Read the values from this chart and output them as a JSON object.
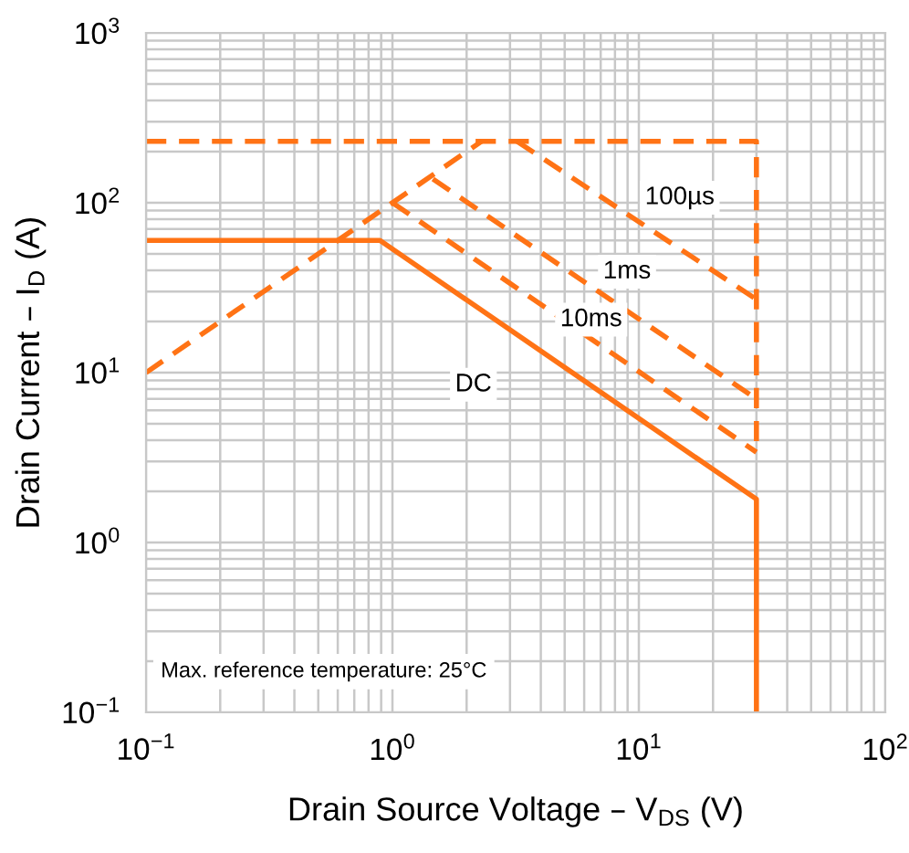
{
  "chart_data": {
    "type": "line",
    "xlabel": "Drain Source Voltage – V$_{DS}$ (V)",
    "ylabel": "Drain Current – I$_{D}$ (A)",
    "log": "xy",
    "xlim": [
      0.1,
      100
    ],
    "ylim": [
      0.1,
      1000
    ],
    "xticks": [
      {
        "value": 0.1,
        "label": "10$^{−1}$"
      },
      {
        "value": 1,
        "label": "10$^{0}$"
      },
      {
        "value": 10,
        "label": "10$^{1}$"
      },
      {
        "value": 100,
        "label": "10$^{2}$"
      }
    ],
    "yticks": [
      {
        "value": 0.1,
        "label": "10$^{−1}$"
      },
      {
        "value": 1,
        "label": "10$^{0}$"
      },
      {
        "value": 10,
        "label": "10$^{1}$"
      },
      {
        "value": 100,
        "label": "10$^{2}$"
      },
      {
        "value": 1000,
        "label": "10$^{3}$"
      }
    ],
    "grid": true,
    "legend": false,
    "marker": "none",
    "series": [
      {
        "color": "#ff7315",
        "line_style": "dashed",
        "x": [
          0.1,
          30,
          30
        ],
        "values": [
          230,
          230,
          3.4
        ]
      },
      {
        "color": "#ff7315",
        "line_style": "dashed",
        "x": [
          0.1,
          2.3
        ],
        "values": [
          10,
          230
        ]
      },
      {
        "name": "100µs",
        "color": "#ff7315",
        "line_style": "dashed",
        "x": [
          3.2,
          30
        ],
        "values": [
          230,
          27
        ]
      },
      {
        "name": "1ms",
        "color": "#ff7315",
        "line_style": "dashed",
        "x": [
          1.46,
          30
        ],
        "values": [
          138,
          7
        ]
      },
      {
        "name": "10ms",
        "color": "#ff7315",
        "line_style": "dashed",
        "x": [
          1.0,
          30
        ],
        "values": [
          100,
          3.4
        ]
      },
      {
        "name": "DC",
        "color": "#ff7315",
        "line_style": "solid",
        "x": [
          0.1,
          0.89,
          30,
          30
        ],
        "values": [
          60,
          60,
          1.8,
          0.1
        ]
      }
    ],
    "annotations": [
      "Max. reference temperature: 25°C"
    ]
  }
}
